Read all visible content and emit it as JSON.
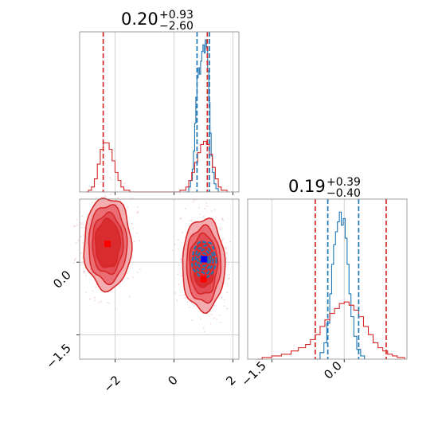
{
  "chart_data": {
    "type": "corner",
    "colors": {
      "blue": "#1f77b4",
      "red": "#d62728",
      "grid": "#c8c8c8",
      "frame": "#888888",
      "light_red": "#f2a0a3",
      "mid_red": "#e8636a"
    },
    "panels": [
      {
        "id": "hist-param1",
        "type": "histogram",
        "title": {
          "value": "0.20",
          "plus": "+0.93",
          "minus": "−2.60"
        },
        "xlim": [
          -3.2,
          2.2
        ],
        "grid_x": [
          -2,
          0,
          2
        ],
        "series": [
          {
            "name": "blue",
            "color": "#1f77b4",
            "bins": [
              [
                0.4,
                0.0
              ],
              [
                0.5,
                0.03
              ],
              [
                0.56,
                0.07
              ],
              [
                0.62,
                0.14
              ],
              [
                0.66,
                0.25
              ],
              [
                0.7,
                0.42
              ],
              [
                0.74,
                0.58
              ],
              [
                0.78,
                0.7
              ],
              [
                0.82,
                0.76
              ],
              [
                0.86,
                0.72
              ],
              [
                0.9,
                0.8
              ],
              [
                0.94,
                0.86
              ],
              [
                0.98,
                0.9
              ],
              [
                1.02,
                0.85
              ],
              [
                1.06,
                0.93
              ],
              [
                1.1,
                0.88
              ],
              [
                1.14,
                0.74
              ],
              [
                1.18,
                0.55
              ],
              [
                1.22,
                0.36
              ],
              [
                1.26,
                0.22
              ],
              [
                1.3,
                0.12
              ],
              [
                1.36,
                0.05
              ],
              [
                1.42,
                0.02
              ],
              [
                1.5,
                0.0
              ]
            ]
          },
          {
            "name": "red",
            "color": "#d62728",
            "bins": [
              [
                -3.0,
                0.0
              ],
              [
                -2.9,
                0.01
              ],
              [
                -2.8,
                0.03
              ],
              [
                -2.7,
                0.08
              ],
              [
                -2.6,
                0.17
              ],
              [
                -2.5,
                0.26
              ],
              [
                -2.4,
                0.3
              ],
              [
                -2.3,
                0.3
              ],
              [
                -2.2,
                0.26
              ],
              [
                -2.1,
                0.19
              ],
              [
                -2.0,
                0.12
              ],
              [
                -1.9,
                0.07
              ],
              [
                -1.8,
                0.03
              ],
              [
                -1.7,
                0.01
              ],
              [
                -1.5,
                0.0
              ],
              [
                -1.0,
                0.0
              ],
              [
                0.0,
                0.0
              ],
              [
                0.2,
                0.01
              ],
              [
                0.4,
                0.03
              ],
              [
                0.5,
                0.07
              ],
              [
                0.6,
                0.12
              ],
              [
                0.7,
                0.18
              ],
              [
                0.8,
                0.24
              ],
              [
                0.9,
                0.29
              ],
              [
                1.0,
                0.31
              ],
              [
                1.1,
                0.29
              ],
              [
                1.2,
                0.23
              ],
              [
                1.3,
                0.15
              ],
              [
                1.4,
                0.08
              ],
              [
                1.5,
                0.03
              ],
              [
                1.6,
                0.01
              ],
              [
                1.8,
                0.0
              ]
            ]
          }
        ],
        "vlines": [
          {
            "x": 0.78,
            "color": "#1f77b4"
          },
          {
            "x": 1.2,
            "color": "#1f77b4"
          },
          {
            "x": -2.4,
            "color": "#d62728"
          },
          {
            "x": 1.13,
            "color": "#d62728"
          }
        ]
      },
      {
        "id": "hist-param2",
        "type": "histogram",
        "title": {
          "value": "0.19",
          "plus": "+0.39",
          "minus": "−0.40"
        },
        "xlim": [
          -2.0,
          1.3
        ],
        "grid_x": [
          -1.5,
          0.0
        ],
        "tick_labels": [
          "−1.5",
          "0.0"
        ],
        "series": [
          {
            "name": "blue",
            "color": "#1f77b4",
            "bins": [
              [
                -0.6,
                0.0
              ],
              [
                -0.5,
                0.04
              ],
              [
                -0.42,
                0.1
              ],
              [
                -0.36,
                0.22
              ],
              [
                -0.3,
                0.4
              ],
              [
                -0.26,
                0.58
              ],
              [
                -0.22,
                0.7
              ],
              [
                -0.18,
                0.78
              ],
              [
                -0.14,
                0.84
              ],
              [
                -0.1,
                0.9
              ],
              [
                -0.06,
                0.82
              ],
              [
                -0.02,
                0.86
              ],
              [
                0.02,
                0.74
              ],
              [
                0.06,
                0.58
              ],
              [
                0.1,
                0.4
              ],
              [
                0.14,
                0.26
              ],
              [
                0.2,
                0.14
              ],
              [
                0.26,
                0.06
              ],
              [
                0.34,
                0.02
              ],
              [
                0.42,
                0.0
              ]
            ]
          },
          {
            "name": "red",
            "color": "#d62728",
            "bins": [
              [
                -1.8,
                0.0
              ],
              [
                -1.7,
                0.01
              ],
              [
                -1.5,
                0.02
              ],
              [
                -1.3,
                0.03
              ],
              [
                -1.1,
                0.05
              ],
              [
                -0.95,
                0.07
              ],
              [
                -0.8,
                0.09
              ],
              [
                -0.7,
                0.12
              ],
              [
                -0.6,
                0.15
              ],
              [
                -0.5,
                0.2
              ],
              [
                -0.4,
                0.24
              ],
              [
                -0.3,
                0.28
              ],
              [
                -0.2,
                0.31
              ],
              [
                -0.1,
                0.34
              ],
              [
                0.0,
                0.35
              ],
              [
                0.1,
                0.33
              ],
              [
                0.2,
                0.3
              ],
              [
                0.3,
                0.26
              ],
              [
                0.4,
                0.2
              ],
              [
                0.5,
                0.15
              ],
              [
                0.6,
                0.1
              ],
              [
                0.7,
                0.07
              ],
              [
                0.8,
                0.05
              ],
              [
                0.9,
                0.03
              ],
              [
                1.0,
                0.02
              ],
              [
                1.1,
                0.01
              ],
              [
                1.25,
                0.0
              ]
            ]
          }
        ],
        "vlines": [
          {
            "x": -0.34,
            "color": "#1f77b4"
          },
          {
            "x": 0.3,
            "color": "#1f77b4"
          },
          {
            "x": -0.6,
            "color": "#d62728"
          },
          {
            "x": 0.87,
            "color": "#d62728"
          }
        ]
      },
      {
        "id": "contour-2d",
        "type": "contour",
        "xlim": [
          -3.2,
          2.2
        ],
        "ylim": [
          -2.0,
          1.3
        ],
        "grid_x": [
          -2,
          0,
          2
        ],
        "grid_y": [
          0.0,
          -1.5
        ],
        "x_tick_labels": [
          "−2",
          "0",
          "2"
        ],
        "y_tick_labels": [
          "0.0",
          "−1.5"
        ],
        "red_clusters": [
          {
            "cx": -2.25,
            "cy": 0.38,
            "rx": [
              0.8,
              0.65,
              0.52,
              0.42
            ],
            "ry": [
              0.95,
              0.8,
              0.62,
              0.5
            ]
          },
          {
            "cx": 1.0,
            "cy": -0.05,
            "rx": [
              0.72,
              0.58,
              0.47,
              0.37
            ],
            "ry": [
              0.95,
              0.78,
              0.62,
              0.47
            ]
          }
        ],
        "blue_cluster": {
          "cx": 1.02,
          "cy": 0.05,
          "rx": [
            0.4,
            0.3,
            0.22,
            0.14
          ],
          "ry": [
            0.38,
            0.28,
            0.2,
            0.13
          ]
        },
        "markers": [
          {
            "x": -2.25,
            "y": 0.38,
            "color": "#ff0000"
          },
          {
            "x": 1.02,
            "y": 0.06,
            "color": "#0000ff"
          },
          {
            "x": 1.0,
            "y": -0.35,
            "color": "#ff0000"
          }
        ]
      }
    ]
  }
}
